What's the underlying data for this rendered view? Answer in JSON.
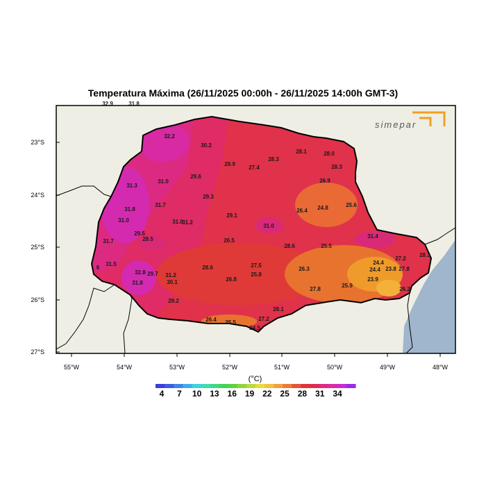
{
  "title": "Temperatura Máxima (26/11/2025 00:00h - 26/11/2025 14:00h GMT-3)",
  "logo_text": "simepar",
  "unit": "(°C)",
  "colors": {
    "ocean": "#9fb6cc",
    "land_outside": "#efeee5",
    "border": "#000000"
  },
  "y_ticks": [
    "23°S",
    "24°S",
    "25°S",
    "26°S",
    "27°S"
  ],
  "x_ticks": [
    "55°W",
    "54°W",
    "53°W",
    "52°W",
    "51°W",
    "50°W",
    "49°W",
    "48°W"
  ],
  "colorbar": {
    "labels": [
      "4",
      "7",
      "10",
      "13",
      "16",
      "19",
      "22",
      "25",
      "28",
      "31",
      "34"
    ],
    "colors": [
      "#3b3fd9",
      "#3f5ce0",
      "#3f84e6",
      "#3faee8",
      "#3fd2dc",
      "#3fdcb0",
      "#3fd985",
      "#3fd55a",
      "#5bd23f",
      "#8fd43f",
      "#bcd83f",
      "#e6dc3f",
      "#f0c23f",
      "#f0a03f",
      "#ec7a3a",
      "#e5553a",
      "#e03438",
      "#df2a55",
      "#df2a80",
      "#dc2aa8",
      "#c82ad0",
      "#9b2ae6"
    ]
  },
  "stations": [
    {
      "label": "32.9"
    },
    {
      "label": "31.8"
    },
    {
      "label": "32.2"
    },
    {
      "label": "30.2"
    },
    {
      "label": "28.1"
    },
    {
      "label": "28.0"
    },
    {
      "label": "29.9"
    },
    {
      "label": "28.3"
    },
    {
      "label": "27.4"
    },
    {
      "label": "28.3"
    },
    {
      "label": "29.6"
    },
    {
      "label": "31.0"
    },
    {
      "label": "31.3"
    },
    {
      "label": "26.9"
    },
    {
      "label": "29.3"
    },
    {
      "label": "31.7"
    },
    {
      "label": "31.8"
    },
    {
      "label": "24.8"
    },
    {
      "label": "25.6"
    },
    {
      "label": "26.4"
    },
    {
      "label": "29.1"
    },
    {
      "label": "31.0"
    },
    {
      "label": "31.0"
    },
    {
      "label": "31.2"
    },
    {
      "label": "31.0"
    },
    {
      "label": "29.5"
    },
    {
      "label": "28.5"
    },
    {
      "label": "31.4"
    },
    {
      "label": "31.7"
    },
    {
      "label": "26.5"
    },
    {
      "label": "28.6"
    },
    {
      "label": "25.5"
    },
    {
      "label": "28.3"
    },
    {
      "label": "31.5"
    },
    {
      "label": "24.4"
    },
    {
      "label": "27.2"
    },
    {
      "label": "27.5"
    },
    {
      "label": "24.4"
    },
    {
      "label": "23.8"
    },
    {
      "label": "27.8"
    },
    {
      "label": "32.8"
    },
    {
      "label": "29.7"
    },
    {
      "label": "28.6"
    },
    {
      "label": "26.3"
    },
    {
      "label": "25.8"
    },
    {
      "label": "31.2"
    },
    {
      "label": "31.8"
    },
    {
      "label": "30.1"
    },
    {
      "label": "26.8"
    },
    {
      "label": "23.9"
    },
    {
      "label": "25.9"
    },
    {
      "label": "27.8"
    },
    {
      "label": "26.2"
    },
    {
      "label": "29.2"
    },
    {
      "label": "28.1"
    },
    {
      "label": "26.4"
    },
    {
      "label": "25.5"
    },
    {
      "label": "27.2"
    },
    {
      "label": "24.5"
    },
    {
      "label": "6"
    }
  ]
}
